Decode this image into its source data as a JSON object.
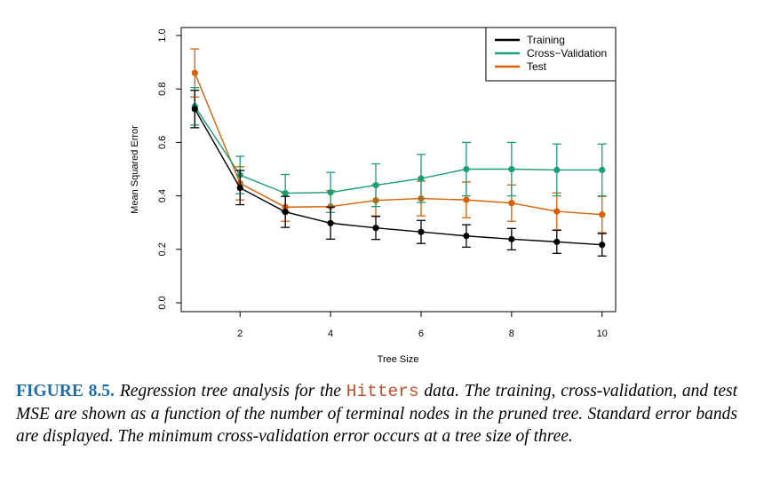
{
  "chart_data": {
    "type": "line",
    "xlabel": "Tree Size",
    "ylabel": "Mean Squared Error",
    "xlim": [
      0.7,
      10.3
    ],
    "ylim": [
      0.0,
      1.0
    ],
    "xticks": [
      "2",
      "4",
      "6",
      "8",
      "10"
    ],
    "yticks": [
      "0.0",
      "0.2",
      "0.4",
      "0.6",
      "0.8",
      "1.0"
    ],
    "grid": false,
    "legend_position": "top-right",
    "x": [
      1,
      2,
      3,
      4,
      5,
      6,
      7,
      8,
      9,
      10
    ],
    "series": [
      {
        "name": "Training",
        "color": "#000000",
        "values": [
          0.725,
          0.43,
          0.34,
          0.298,
          0.28,
          0.265,
          0.25,
          0.238,
          0.228,
          0.217
        ],
        "err_low": [
          0.655,
          0.367,
          0.282,
          0.238,
          0.237,
          0.222,
          0.208,
          0.198,
          0.185,
          0.175
        ],
        "err_high": [
          0.795,
          0.495,
          0.398,
          0.358,
          0.323,
          0.308,
          0.292,
          0.278,
          0.271,
          0.259
        ]
      },
      {
        "name": "Cross−Validation",
        "color": "#1a9e77",
        "values": [
          0.735,
          0.478,
          0.41,
          0.413,
          0.44,
          0.465,
          0.5,
          0.5,
          0.497,
          0.497
        ],
        "err_low": [
          0.665,
          0.408,
          0.34,
          0.338,
          0.36,
          0.375,
          0.4,
          0.4,
          0.4,
          0.4
        ],
        "err_high": [
          0.805,
          0.548,
          0.48,
          0.488,
          0.52,
          0.555,
          0.6,
          0.6,
          0.594,
          0.594
        ]
      },
      {
        "name": "Test",
        "color": "#d95f02",
        "values": [
          0.86,
          0.447,
          0.358,
          0.36,
          0.383,
          0.39,
          0.385,
          0.373,
          0.342,
          0.33
        ],
        "err_low": [
          0.77,
          0.385,
          0.305,
          0.3,
          0.325,
          0.325,
          0.318,
          0.305,
          0.273,
          0.262
        ],
        "err_high": [
          0.95,
          0.509,
          0.411,
          0.42,
          0.441,
          0.455,
          0.452,
          0.441,
          0.411,
          0.398
        ]
      }
    ]
  },
  "caption": {
    "label": "FIGURE 8.5.",
    "text_before": "Regression tree analysis for the ",
    "code": "Hitters",
    "text_after": " data. The training, cross-validation, and test MSE are shown as a function of the number of terminal nodes in the pruned tree. Standard error bands are displayed. The minimum cross-validation error occurs at a tree size of three."
  }
}
